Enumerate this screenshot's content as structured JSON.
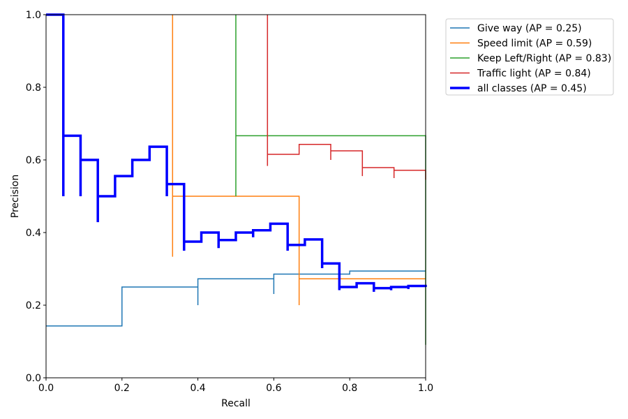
{
  "chart_data": {
    "type": "line",
    "title": "",
    "xlabel": "Recall",
    "ylabel": "Precision",
    "xlim": [
      0,
      1
    ],
    "ylim": [
      0,
      1
    ],
    "xticks": [
      "0.0",
      "0.2",
      "0.4",
      "0.6",
      "0.8",
      "1.0"
    ],
    "yticks": [
      "0.0",
      "0.2",
      "0.4",
      "0.6",
      "0.8",
      "1.0"
    ],
    "grid": false,
    "legend_position": "outside-top-right",
    "series": [
      {
        "name": "Give way (AP = 0.25)",
        "color": "#1f77b4",
        "width": 1.5,
        "points": [
          [
            0,
            0.1429
          ],
          [
            0.2,
            0.1429
          ],
          [
            0.2,
            0.25
          ],
          [
            0.4,
            0.25
          ],
          [
            0.4,
            0.2
          ],
          [
            0.4,
            0.2727
          ],
          [
            0.6,
            0.2727
          ],
          [
            0.6,
            0.2308
          ],
          [
            0.6,
            0.2857
          ],
          [
            0.8,
            0.2857
          ],
          [
            0.8,
            0.2941
          ],
          [
            1.0,
            0.2941
          ]
        ]
      },
      {
        "name": "Speed limit (AP = 0.59)",
        "color": "#ff7f0e",
        "width": 1.5,
        "points": [
          [
            0.3333,
            1.0
          ],
          [
            0.3333,
            0.3333
          ],
          [
            0.3333,
            0.5
          ],
          [
            0.6667,
            0.5
          ],
          [
            0.6667,
            0.2
          ],
          [
            0.6667,
            0.2727
          ],
          [
            1.0,
            0.2727
          ]
        ]
      },
      {
        "name": "Keep Left/Right (AP = 0.83)",
        "color": "#2ca02c",
        "width": 1.5,
        "points": [
          [
            0.5,
            1.0
          ],
          [
            0.5,
            0.5
          ],
          [
            0.5,
            0.6667
          ],
          [
            1.0,
            0.6667
          ],
          [
            1.0,
            0.0909
          ]
        ]
      },
      {
        "name": "Traffic light (AP = 0.84)",
        "color": "#d62728",
        "width": 1.5,
        "points": [
          [
            0.5833,
            1.0
          ],
          [
            0.5833,
            0.5833
          ],
          [
            0.5833,
            0.6154
          ],
          [
            0.6667,
            0.6154
          ],
          [
            0.6667,
            0.6429
          ],
          [
            0.75,
            0.6429
          ],
          [
            0.75,
            0.6
          ],
          [
            0.75,
            0.625
          ],
          [
            0.8333,
            0.625
          ],
          [
            0.8333,
            0.5556
          ],
          [
            0.8333,
            0.5789
          ],
          [
            0.9167,
            0.5789
          ],
          [
            0.9167,
            0.55
          ],
          [
            0.9167,
            0.5714
          ],
          [
            1.0,
            0.5714
          ],
          [
            1.0,
            0.5455
          ]
        ]
      },
      {
        "name": "all classes (AP = 0.45)",
        "color": "#0000ff",
        "width": 3.5,
        "points": [
          [
            0,
            1.0
          ],
          [
            0.0455,
            1.0
          ],
          [
            0.0455,
            0.5
          ],
          [
            0.0455,
            0.6667
          ],
          [
            0.0909,
            0.6667
          ],
          [
            0.0909,
            0.5
          ],
          [
            0.0909,
            0.6
          ],
          [
            0.1364,
            0.6
          ],
          [
            0.1364,
            0.4286
          ],
          [
            0.1364,
            0.5
          ],
          [
            0.1818,
            0.5
          ],
          [
            0.1818,
            0.5556
          ],
          [
            0.2273,
            0.5556
          ],
          [
            0.2273,
            0.6
          ],
          [
            0.2727,
            0.6
          ],
          [
            0.2727,
            0.6364
          ],
          [
            0.3182,
            0.6364
          ],
          [
            0.3182,
            0.5
          ],
          [
            0.3182,
            0.5333
          ],
          [
            0.3636,
            0.5333
          ],
          [
            0.3636,
            0.35
          ],
          [
            0.3636,
            0.375
          ],
          [
            0.4091,
            0.375
          ],
          [
            0.4091,
            0.4
          ],
          [
            0.4545,
            0.4
          ],
          [
            0.4545,
            0.3571
          ],
          [
            0.4545,
            0.3793
          ],
          [
            0.5,
            0.3793
          ],
          [
            0.5,
            0.4
          ],
          [
            0.5455,
            0.4
          ],
          [
            0.5455,
            0.3871
          ],
          [
            0.5455,
            0.4063
          ],
          [
            0.5909,
            0.4063
          ],
          [
            0.5909,
            0.4242
          ],
          [
            0.6364,
            0.4242
          ],
          [
            0.6364,
            0.35
          ],
          [
            0.6364,
            0.3659
          ],
          [
            0.6818,
            0.3659
          ],
          [
            0.6818,
            0.381
          ],
          [
            0.7273,
            0.381
          ],
          [
            0.7273,
            0.3019
          ],
          [
            0.7273,
            0.3148
          ],
          [
            0.7727,
            0.3148
          ],
          [
            0.7727,
            0.2413
          ],
          [
            0.7727,
            0.25
          ],
          [
            0.8182,
            0.25
          ],
          [
            0.8182,
            0.2603
          ],
          [
            0.8636,
            0.2603
          ],
          [
            0.8636,
            0.2368
          ],
          [
            0.8636,
            0.2468
          ],
          [
            0.9091,
            0.2468
          ],
          [
            0.9091,
            0.241
          ],
          [
            0.9091,
            0.25
          ],
          [
            0.9545,
            0.25
          ],
          [
            0.9545,
            0.2444
          ],
          [
            0.9545,
            0.2528
          ],
          [
            1.0,
            0.2528
          ],
          [
            1.0,
            0.25
          ]
        ]
      }
    ]
  }
}
